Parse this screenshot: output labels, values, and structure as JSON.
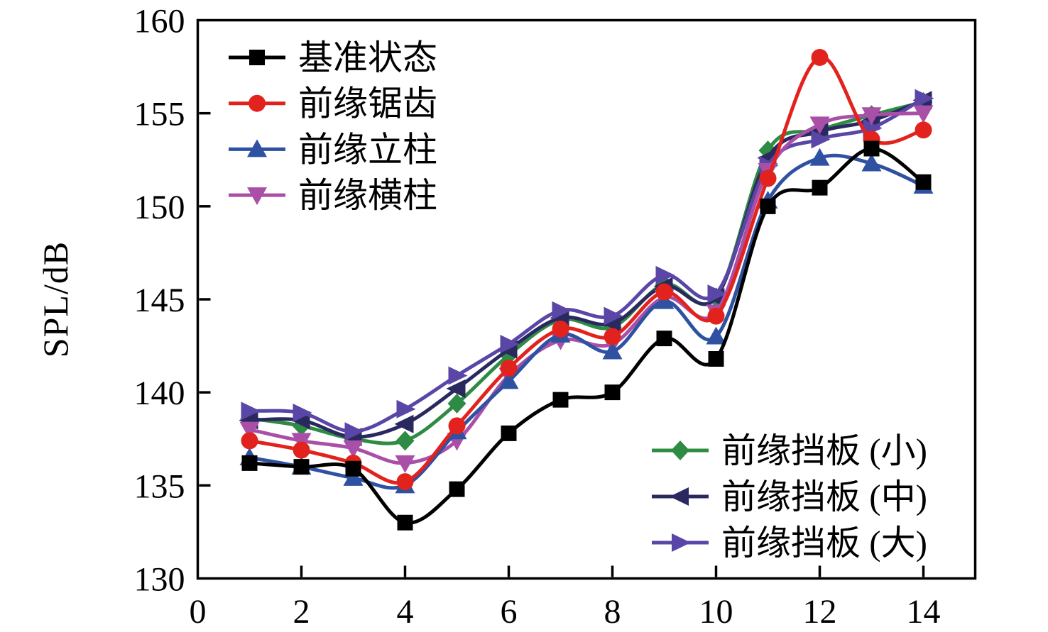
{
  "figure": {
    "background": "#ffffff",
    "frame_color": "#000000"
  },
  "chart_data": {
    "type": "line",
    "title": "",
    "xlabel": "",
    "ylabel": "SPL/dB",
    "xlim": [
      0,
      15
    ],
    "ylim": [
      130,
      160
    ],
    "x_ticks": [
      0,
      2,
      4,
      6,
      8,
      10,
      12,
      14
    ],
    "y_ticks": [
      130,
      135,
      140,
      145,
      150,
      155,
      160
    ],
    "grid": false,
    "x": [
      1,
      2,
      3,
      4,
      5,
      6,
      7,
      8,
      9,
      10,
      11,
      12,
      13,
      14
    ],
    "series": [
      {
        "id": "baseline",
        "name": "基准状态",
        "color": "#000000",
        "marker": "square",
        "values": [
          136.2,
          136.0,
          135.9,
          133.0,
          134.8,
          137.8,
          139.6,
          140.0,
          142.9,
          141.8,
          150.0,
          151.0,
          153.1,
          151.3
        ]
      },
      {
        "id": "leading-edge-serration",
        "name": "前缘锯齿",
        "color": "#e2231d",
        "marker": "circle",
        "values": [
          137.4,
          136.9,
          136.2,
          135.2,
          138.2,
          141.3,
          143.4,
          143.0,
          145.4,
          144.1,
          151.5,
          158.0,
          153.6,
          154.1
        ]
      },
      {
        "id": "leading-edge-column",
        "name": "前缘立柱",
        "color": "#2f51a2",
        "marker": "triangle-up",
        "values": [
          136.5,
          136.0,
          135.4,
          135.0,
          137.9,
          140.6,
          143.1,
          142.2,
          144.9,
          143.0,
          150.3,
          152.6,
          152.3,
          151.1
        ]
      },
      {
        "id": "leading-edge-crossbar",
        "name": "前缘横柱",
        "color": "#aa4fa8",
        "marker": "triangle-down",
        "values": [
          138.0,
          137.4,
          137.0,
          136.2,
          137.4,
          140.9,
          142.8,
          142.6,
          145.1,
          144.3,
          151.9,
          154.4,
          154.9,
          155.0
        ]
      },
      {
        "id": "leading-edge-baffle-small",
        "name": "前缘挡板 (小)",
        "color": "#2e8b44",
        "marker": "diamond",
        "values": [
          138.6,
          138.2,
          137.5,
          137.4,
          139.4,
          142.0,
          143.9,
          143.5,
          145.8,
          145.1,
          153.0,
          154.1,
          154.9,
          155.6
        ]
      },
      {
        "id": "leading-edge-baffle-medium",
        "name": "前缘挡板 (中)",
        "color": "#29295f",
        "marker": "triangle-left",
        "values": [
          138.5,
          138.5,
          137.6,
          138.3,
          140.2,
          142.3,
          144.0,
          143.7,
          145.7,
          145.1,
          152.6,
          154.0,
          154.6,
          155.7
        ]
      },
      {
        "id": "leading-edge-baffle-large",
        "name": "前缘挡板 (大)",
        "color": "#5a46a6",
        "marker": "triangle-right",
        "values": [
          139.0,
          138.9,
          137.9,
          139.1,
          140.9,
          142.6,
          144.4,
          144.1,
          146.3,
          145.3,
          152.2,
          153.6,
          154.2,
          155.8
        ]
      }
    ],
    "legend_top_left": {
      "position": "top-left",
      "items": [
        0,
        1,
        2,
        3
      ]
    },
    "legend_bottom_right": {
      "position": "bottom-right",
      "items": [
        4,
        5,
        6
      ]
    }
  }
}
